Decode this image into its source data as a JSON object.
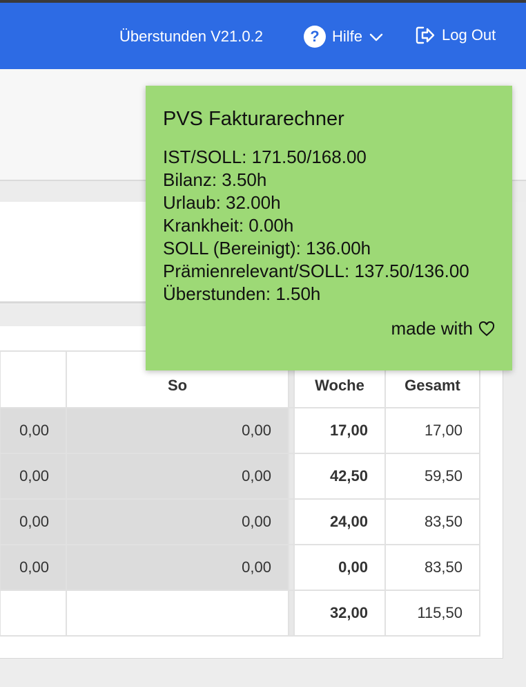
{
  "navbar": {
    "version": "Überstunden V21.0.2",
    "help_label": "Hilfe",
    "logout_label": "Log Out",
    "color": "#2d6be4"
  },
  "tooltip": {
    "title": "PVS Fakturarechner",
    "lines": [
      "IST/SOLL: 171.50/168.00",
      "Bilanz: 3.50h",
      "Urlaub: 32.00h",
      "Krankheit: 0.00h",
      "SOLL (Bereinigt): 136.00h",
      "Prämienrelevant/SOLL: 137.50/136.00",
      "Überstunden: 1.50h"
    ],
    "footer": "made with",
    "background": "#9dd976"
  },
  "table": {
    "headers": [
      "",
      "So",
      "",
      "Woche",
      "Gesamt"
    ],
    "rows": [
      [
        "0,00",
        "0,00",
        "",
        "17,00",
        "17,00"
      ],
      [
        "0,00",
        "0,00",
        "",
        "42,50",
        "59,50"
      ],
      [
        "0,00",
        "0,00",
        "",
        "24,00",
        "83,50"
      ],
      [
        "0,00",
        "0,00",
        "",
        "0,00",
        "83,50"
      ],
      [
        "",
        "",
        "",
        "32,00",
        "115,50"
      ]
    ]
  }
}
